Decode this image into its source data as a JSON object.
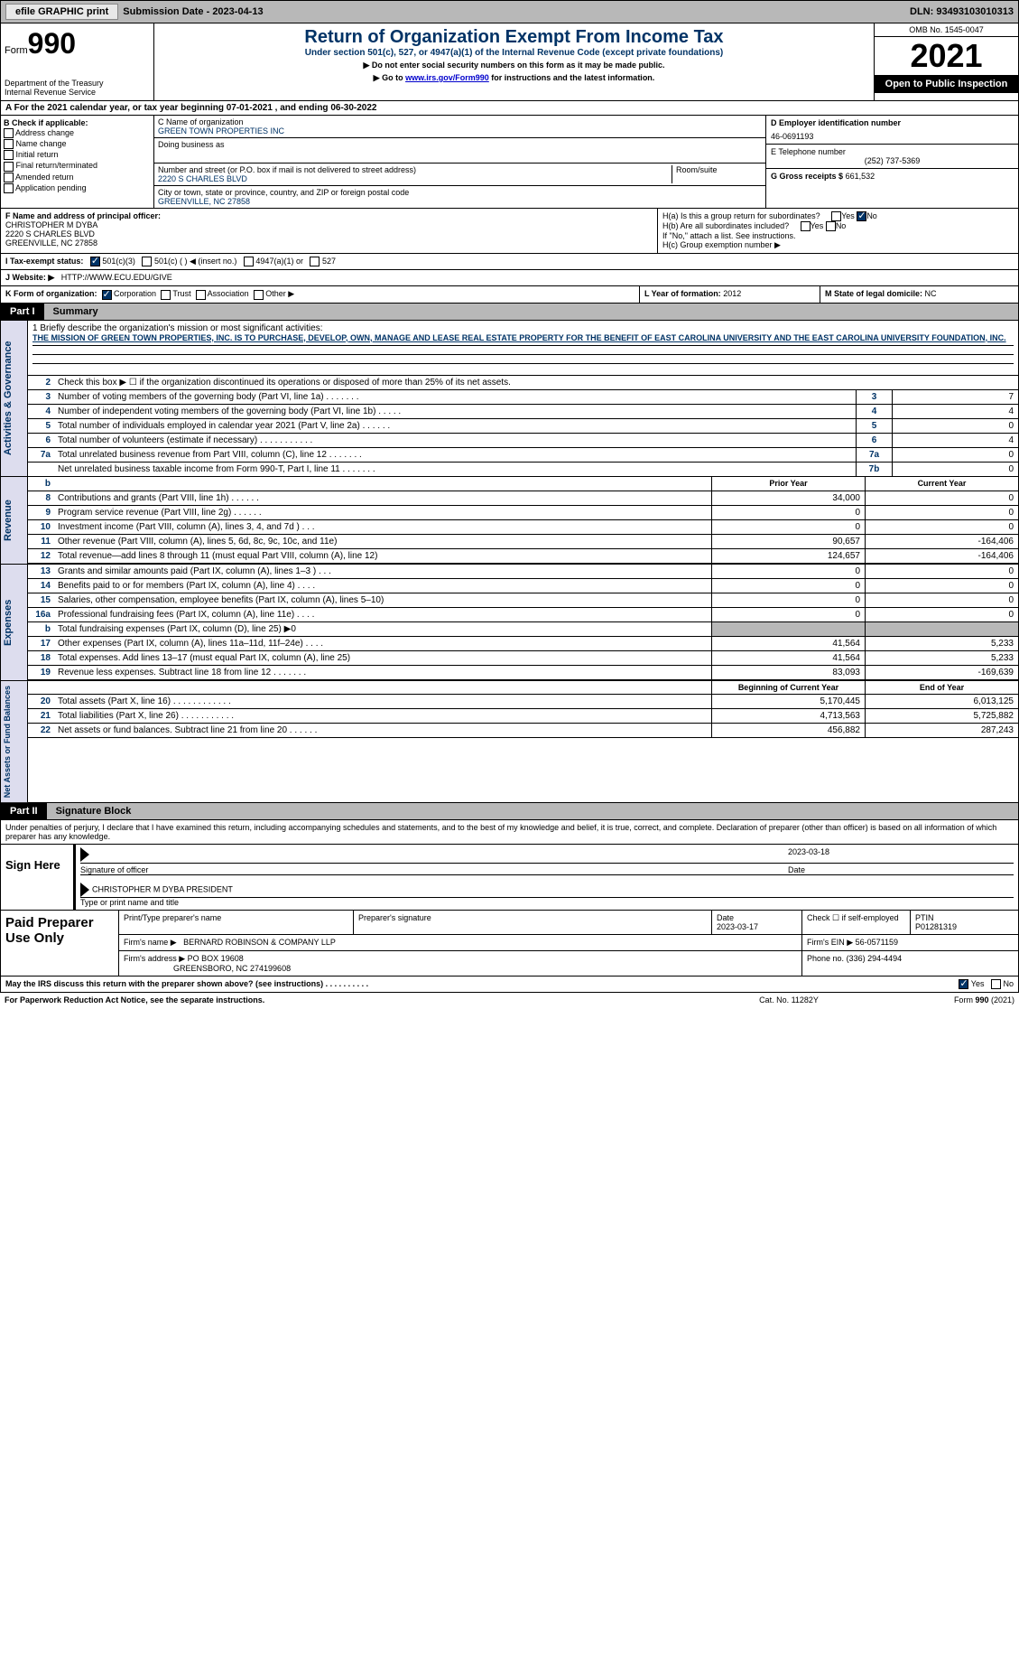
{
  "topbar": {
    "efile": "efile GRAPHIC print",
    "sub_date": "Submission Date - 2023-04-13",
    "dln": "DLN: 93493103010313"
  },
  "header": {
    "form_label": "Form",
    "form_num": "990",
    "dept": "Department of the Treasury",
    "irs": "Internal Revenue Service",
    "title": "Return of Organization Exempt From Income Tax",
    "subtitle": "Under section 501(c), 527, or 4947(a)(1) of the Internal Revenue Code (except private foundations)",
    "note1": "▶ Do not enter social security numbers on this form as it may be made public.",
    "note2_pre": "▶ Go to ",
    "note2_link": "www.irs.gov/Form990",
    "note2_post": " for instructions and the latest information.",
    "omb": "OMB No. 1545-0047",
    "year": "2021",
    "inspect": "Open to Public Inspection"
  },
  "section_a": "A For the 2021 calendar year, or tax year beginning 07-01-2021    , and ending 06-30-2022",
  "section_b": {
    "header": "B Check if applicable:",
    "opts": [
      "Address change",
      "Name change",
      "Initial return",
      "Final return/terminated",
      "Amended return",
      "Application pending"
    ]
  },
  "section_c": {
    "name_lbl": "C Name of organization",
    "name": "GREEN TOWN PROPERTIES INC",
    "dba_lbl": "Doing business as",
    "dba": "",
    "addr_lbl": "Number and street (or P.O. box if mail is not delivered to street address)",
    "room_lbl": "Room/suite",
    "addr": "2220 S CHARLES BLVD",
    "city_lbl": "City or town, state or province, country, and ZIP or foreign postal code",
    "city": "GREENVILLE, NC  27858"
  },
  "section_d": {
    "ein_lbl": "D Employer identification number",
    "ein": "46-0691193",
    "tel_lbl": "E Telephone number",
    "tel": "(252) 737-5369",
    "gross_lbl": "G Gross receipts $",
    "gross": "661,532"
  },
  "section_f": {
    "lbl": "F Name and address of principal officer:",
    "name": "CHRISTOPHER M DYBA",
    "addr1": "2220 S CHARLES BLVD",
    "addr2": "GREENVILLE, NC  27858"
  },
  "section_h": {
    "ha": "H(a)  Is this a group return for subordinates?",
    "hb": "H(b)  Are all subordinates included?",
    "hb_note": "If \"No,\" attach a list. See instructions.",
    "hc": "H(c)  Group exemption number ▶",
    "yes": "Yes",
    "no": "No"
  },
  "section_i": {
    "lbl": "I    Tax-exempt status:",
    "o1": "501(c)(3)",
    "o2": "501(c) (   ) ◀ (insert no.)",
    "o3": "4947(a)(1) or",
    "o4": "527"
  },
  "section_j": {
    "lbl": "J   Website: ▶",
    "val": "HTTP://WWW.ECU.EDU/GIVE"
  },
  "section_k": {
    "lbl": "K Form of organization:",
    "o1": "Corporation",
    "o2": "Trust",
    "o3": "Association",
    "o4": "Other ▶"
  },
  "section_l": {
    "lbl": "L Year of formation:",
    "val": "2012"
  },
  "section_m": {
    "lbl": "M State of legal domicile:",
    "val": "NC"
  },
  "parts": {
    "p1_num": "Part I",
    "p1_title": "Summary",
    "p2_num": "Part II",
    "p2_title": "Signature Block"
  },
  "summary": {
    "mission_lbl": "1   Briefly describe the organization's mission or most significant activities:",
    "mission": "THE MISSION OF GREEN TOWN PROPERTIES, INC. IS TO PURCHASE, DEVELOP, OWN, MANAGE AND LEASE REAL ESTATE PROPERTY FOR THE BENEFIT OF EAST CAROLINA UNIVERSITY AND THE EAST CAROLINA UNIVERSITY FOUNDATION, INC.",
    "line2": "Check this box ▶ ☐ if the organization discontinued its operations or disposed of more than 25% of its net assets.",
    "gov_lines": [
      {
        "n": "3",
        "t": "Number of voting members of the governing body (Part VI, line 1a)   .    .    .    .    .    .    .",
        "b": "3",
        "v": "7"
      },
      {
        "n": "4",
        "t": "Number of independent voting members of the governing body (Part VI, line 1b)   .    .    .    .    .",
        "b": "4",
        "v": "4"
      },
      {
        "n": "5",
        "t": "Total number of individuals employed in calendar year 2021 (Part V, line 2a)   .    .    .    .    .    .",
        "b": "5",
        "v": "0"
      },
      {
        "n": "6",
        "t": "Total number of volunteers (estimate if necessary)    .    .    .    .    .    .    .    .    .    .    .",
        "b": "6",
        "v": "4"
      },
      {
        "n": "7a",
        "t": "Total unrelated business revenue from Part VIII, column (C), line 12    .    .    .    .    .    .    .",
        "b": "7a",
        "v": "0"
      },
      {
        "n": "",
        "t": "Net unrelated business taxable income from Form 990-T, Part I, line 11   .    .    .    .    .    .    .",
        "b": "7b",
        "v": "0"
      }
    ],
    "col_hdr_b": "b",
    "col_prior": "Prior Year",
    "col_current": "Current Year",
    "rev_lines": [
      {
        "n": "8",
        "t": "Contributions and grants (Part VIII, line 1h)    .    .    .    .    .    .",
        "p": "34,000",
        "c": "0"
      },
      {
        "n": "9",
        "t": "Program service revenue (Part VIII, line 2g)    .    .    .    .    .    .",
        "p": "0",
        "c": "0"
      },
      {
        "n": "10",
        "t": "Investment income (Part VIII, column (A), lines 3, 4, and 7d )    .    .    .",
        "p": "0",
        "c": "0"
      },
      {
        "n": "11",
        "t": "Other revenue (Part VIII, column (A), lines 5, 6d, 8c, 9c, 10c, and 11e)",
        "p": "90,657",
        "c": "-164,406"
      },
      {
        "n": "12",
        "t": "Total revenue—add lines 8 through 11 (must equal Part VIII, column (A), line 12)",
        "p": "124,657",
        "c": "-164,406"
      }
    ],
    "exp_lines": [
      {
        "n": "13",
        "t": "Grants and similar amounts paid (Part IX, column (A), lines 1–3 )   .    .    .",
        "p": "0",
        "c": "0"
      },
      {
        "n": "14",
        "t": "Benefits paid to or for members (Part IX, column (A), line 4)   .    .    .    .",
        "p": "0",
        "c": "0"
      },
      {
        "n": "15",
        "t": "Salaries, other compensation, employee benefits (Part IX, column (A), lines 5–10)",
        "p": "0",
        "c": "0"
      },
      {
        "n": "16a",
        "t": "Professional fundraising fees (Part IX, column (A), line 11e)   .    .    .    .",
        "p": "0",
        "c": "0"
      },
      {
        "n": "b",
        "t": "Total fundraising expenses (Part IX, column (D), line 25) ▶0",
        "p": "",
        "c": "",
        "shaded": true
      },
      {
        "n": "17",
        "t": "Other expenses (Part IX, column (A), lines 11a–11d, 11f–24e)   .    .    .    .",
        "p": "41,564",
        "c": "5,233"
      },
      {
        "n": "18",
        "t": "Total expenses. Add lines 13–17 (must equal Part IX, column (A), line 25)",
        "p": "41,564",
        "c": "5,233"
      },
      {
        "n": "19",
        "t": "Revenue less expenses. Subtract line 18 from line 12   .    .    .    .    .    .    .",
        "p": "83,093",
        "c": "-169,639"
      }
    ],
    "col_beg": "Beginning of Current Year",
    "col_end": "End of Year",
    "net_lines": [
      {
        "n": "20",
        "t": "Total assets (Part X, line 16)   .    .    .    .    .    .    .    .    .    .    .    .",
        "p": "5,170,445",
        "c": "6,013,125"
      },
      {
        "n": "21",
        "t": "Total liabilities (Part X, line 26)   .    .    .    .    .    .    .    .    .    .    .",
        "p": "4,713,563",
        "c": "5,725,882"
      },
      {
        "n": "22",
        "t": "Net assets or fund balances. Subtract line 21 from line 20   .    .    .    .    .    .",
        "p": "456,882",
        "c": "287,243"
      }
    ],
    "vert_labels": {
      "gov": "Activities & Governance",
      "rev": "Revenue",
      "exp": "Expenses",
      "net": "Net Assets or Fund Balances"
    }
  },
  "sig": {
    "declare": "Under penalties of perjury, I declare that I have examined this return, including accompanying schedules and statements, and to the best of my knowledge and belief, it is true, correct, and complete. Declaration of preparer (other than officer) is based on all information of which preparer has any knowledge.",
    "sign_here": "Sign Here",
    "sig_of_officer": "Signature of officer",
    "date": "2023-03-18",
    "date_lbl": "Date",
    "officer_name": "CHRISTOPHER M DYBA  PRESIDENT",
    "type_name": "Type or print name and title",
    "paid_lbl": "Paid Preparer Use Only",
    "prep_name_lbl": "Print/Type preparer's name",
    "prep_sig_lbl": "Preparer's signature",
    "prep_date_lbl": "Date",
    "prep_date": "2023-03-17",
    "check_if": "Check ☐ if self-employed",
    "ptin_lbl": "PTIN",
    "ptin": "P01281319",
    "firm_name_lbl": "Firm's name      ▶",
    "firm_name": "BERNARD ROBINSON & COMPANY LLP",
    "firm_ein_lbl": "Firm's EIN ▶",
    "firm_ein": "56-0571159",
    "firm_addr_lbl": "Firm's address ▶",
    "firm_addr": "PO BOX 19608",
    "firm_city": "GREENSBORO, NC  274199608",
    "phone_lbl": "Phone no.",
    "phone": "(336) 294-4494"
  },
  "footer": {
    "discuss": "May the IRS discuss this return with the preparer shown above? (see instructions)   .    .    .    .    .    .    .    .    .    .",
    "yes": "Yes",
    "no": "No",
    "paperwork": "For Paperwork Reduction Act Notice, see the separate instructions.",
    "cat": "Cat. No. 11282Y",
    "form": "Form 990 (2021)"
  }
}
